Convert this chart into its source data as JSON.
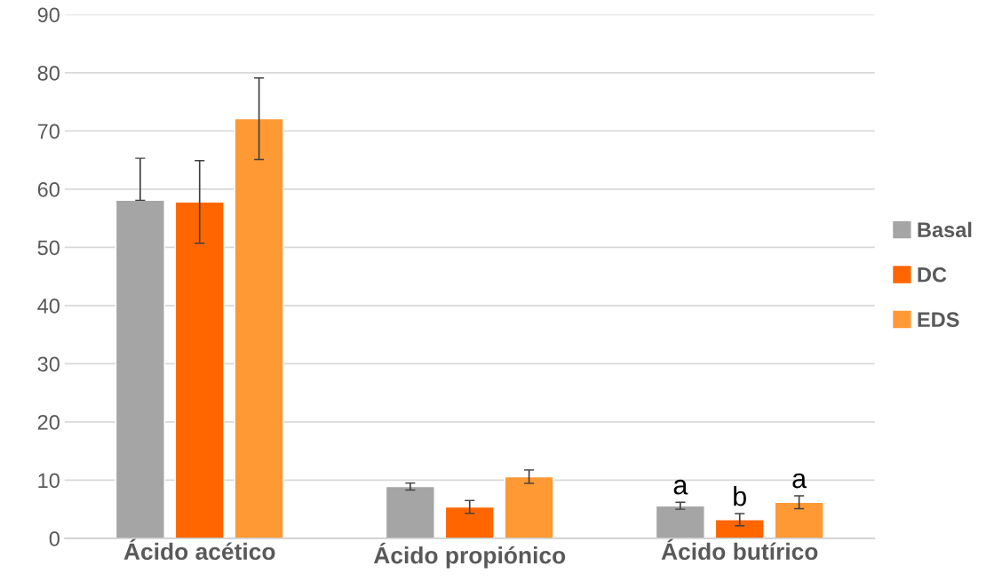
{
  "chart_data": {
    "type": "bar",
    "categories": [
      "Ácido acético",
      "Ácido propiónico",
      "Ácido butírico"
    ],
    "series": [
      {
        "name": "Basal",
        "color": "#a5a5a5",
        "values": [
          58.1,
          8.9,
          5.6
        ],
        "errors": [
          [
            58.1,
            65.3
          ],
          0.6,
          0.6
        ]
      },
      {
        "name": "DC",
        "color": "#ff6600",
        "values": [
          57.8,
          5.4,
          3.2
        ],
        "errors": [
          7.1,
          1.1,
          1.05
        ]
      },
      {
        "name": "EDS",
        "color": "#ff9933",
        "values": [
          72.1,
          10.6,
          6.2
        ],
        "errors": [
          7.0,
          1.15,
          1.1
        ]
      }
    ],
    "ylim": [
      0,
      90
    ],
    "yticks": [
      0,
      10,
      20,
      30,
      40,
      50,
      60,
      70,
      80,
      90
    ],
    "grid": "y",
    "legend": "right",
    "annotations": [
      "a",
      "b",
      "a"
    ]
  }
}
